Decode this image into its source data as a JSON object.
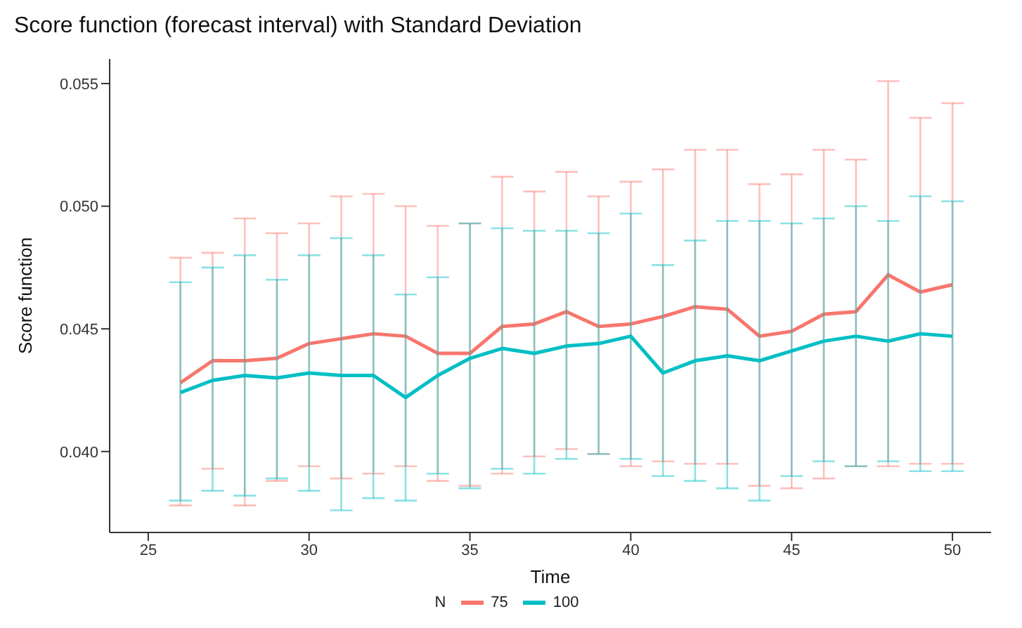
{
  "chart_data": {
    "type": "line",
    "title": "Score function (forecast interval) with Standard Deviation",
    "xlabel": "Time",
    "ylabel": "Score function",
    "legend_title": "N",
    "legend": "bottom",
    "marker": "none",
    "line_style": "solid",
    "grid": false,
    "x": [
      26,
      27,
      28,
      29,
      30,
      31,
      32,
      33,
      34,
      35,
      36,
      37,
      38,
      39,
      40,
      41,
      42,
      43,
      44,
      45,
      46,
      47,
      48,
      49,
      50
    ],
    "xlim": [
      23.8,
      51.2
    ],
    "xticks": [
      25,
      30,
      35,
      40,
      45,
      50
    ],
    "ylim": [
      0.0367,
      0.056
    ],
    "yticks": [
      {
        "value": 0.04,
        "label": "0.040"
      },
      {
        "value": 0.045,
        "label": "0.045"
      },
      {
        "value": 0.05,
        "label": "0.050"
      },
      {
        "value": 0.055,
        "label": "0.055"
      }
    ],
    "series": [
      {
        "name": "75",
        "color": "#f8766d",
        "values": [
          0.0428,
          0.0437,
          0.0437,
          0.0438,
          0.0444,
          0.0446,
          0.0448,
          0.0447,
          0.044,
          0.044,
          0.0451,
          0.0452,
          0.0457,
          0.0451,
          0.0452,
          0.0455,
          0.0459,
          0.0458,
          0.0447,
          0.0449,
          0.0456,
          0.0457,
          0.0472,
          0.0465,
          0.0468
        ],
        "errors": [
          [
            0.0378,
            0.0479
          ],
          [
            0.0393,
            0.0481
          ],
          [
            0.0378,
            0.0495
          ],
          [
            0.0388,
            0.0489
          ],
          [
            0.0394,
            0.0493
          ],
          [
            0.0389,
            0.0504
          ],
          [
            0.0391,
            0.0505
          ],
          [
            0.0394,
            0.05
          ],
          [
            0.0388,
            0.0492
          ],
          [
            0.0386,
            0.0493
          ],
          [
            0.0391,
            0.0512
          ],
          [
            0.0398,
            0.0506
          ],
          [
            0.0401,
            0.0514
          ],
          [
            0.0399,
            0.0504
          ],
          [
            0.0394,
            0.051
          ],
          [
            0.0396,
            0.0515
          ],
          [
            0.0395,
            0.0523
          ],
          [
            0.0395,
            0.0523
          ],
          [
            0.0386,
            0.0509
          ],
          [
            0.0385,
            0.0513
          ],
          [
            0.0389,
            0.0523
          ],
          [
            0.0394,
            0.0519
          ],
          [
            0.0394,
            0.0551
          ],
          [
            0.0395,
            0.0536
          ],
          [
            0.0395,
            0.0542
          ]
        ]
      },
      {
        "name": "100",
        "color": "#00bfc4",
        "values": [
          0.0424,
          0.0429,
          0.0431,
          0.043,
          0.0432,
          0.0431,
          0.0431,
          0.0422,
          0.0431,
          0.0438,
          0.0442,
          0.044,
          0.0443,
          0.0444,
          0.0447,
          0.0432,
          0.0437,
          0.0439,
          0.0437,
          0.0441,
          0.0445,
          0.0447,
          0.0445,
          0.0448,
          0.0447
        ],
        "errors": [
          [
            0.038,
            0.0469
          ],
          [
            0.0384,
            0.0475
          ],
          [
            0.0382,
            0.048
          ],
          [
            0.0389,
            0.047
          ],
          [
            0.0384,
            0.048
          ],
          [
            0.0376,
            0.0487
          ],
          [
            0.0381,
            0.048
          ],
          [
            0.038,
            0.0464
          ],
          [
            0.0391,
            0.0471
          ],
          [
            0.0385,
            0.0493
          ],
          [
            0.0393,
            0.0491
          ],
          [
            0.0391,
            0.049
          ],
          [
            0.0397,
            0.049
          ],
          [
            0.0399,
            0.0489
          ],
          [
            0.0397,
            0.0497
          ],
          [
            0.039,
            0.0476
          ],
          [
            0.0388,
            0.0486
          ],
          [
            0.0385,
            0.0494
          ],
          [
            0.038,
            0.0494
          ],
          [
            0.039,
            0.0493
          ],
          [
            0.0396,
            0.0495
          ],
          [
            0.0394,
            0.05
          ],
          [
            0.0396,
            0.0494
          ],
          [
            0.0392,
            0.0504
          ],
          [
            0.0392,
            0.0502
          ]
        ]
      }
    ]
  }
}
